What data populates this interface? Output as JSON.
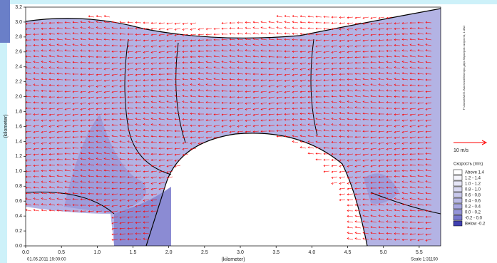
{
  "chart_data": {
    "type": "vector_map",
    "x_label": "(kilometer)",
    "y_label": "(kilometer)",
    "xlim": [
      0,
      5.8
    ],
    "ylim": [
      0,
      3.2
    ],
    "xticks": [
      {
        "value": 0,
        "label": "0.0"
      },
      0.5,
      {
        "value": 1,
        "label": "1.0"
      },
      1.5,
      {
        "value": 2,
        "label": "2.0"
      },
      2.5,
      {
        "value": 3,
        "label": "3.0"
      },
      3.5,
      {
        "value": 4,
        "label": "4.0"
      },
      4.5,
      {
        "value": 5,
        "label": "5.0"
      },
      5.5
    ],
    "yticks": [
      {
        "value": 0,
        "label": "0.0"
      },
      0.2,
      0.4,
      0.6,
      0.8,
      {
        "value": 1,
        "label": "1.0"
      },
      1.2,
      1.4,
      1.6,
      1.8,
      {
        "value": 2,
        "label": "2.0"
      },
      2.2,
      2.4,
      2.6,
      2.8,
      {
        "value": 3,
        "label": "3.0"
      },
      3.2
    ],
    "vector_color": "#ff0000",
    "vector_scale_label": "10 m/s",
    "legend_title": "Скорость (m/s)",
    "legend": [
      {
        "label": "Above  1.4",
        "color": "#ffffff"
      },
      {
        "label": "1.2 - 1.4",
        "color": "#f4f4fb"
      },
      {
        "label": "1.0 - 1.2",
        "color": "#e6e6f6"
      },
      {
        "label": "0.8 - 1.0",
        "color": "#d8d8f1"
      },
      {
        "label": "0.6 - 0.8",
        "color": "#c9c9ec"
      },
      {
        "label": "0.4 - 0.6",
        "color": "#b9b9e6"
      },
      {
        "label": "0.2 - 0.4",
        "color": "#a7a7e0"
      },
      {
        "label": "0.0 - 0.2",
        "color": "#9494d8"
      },
      {
        "label": "-0.2 - 0.0",
        "color": "#7777cc"
      },
      {
        "label": "Below -0.2",
        "color": "#4040b0"
      }
    ],
    "file_path": "F:\\Залив\\МИ2.0\\Анализ\\Вектора двух барьеров скорости, 1.dfs2",
    "timestamp": "01.05.2011 19:00:00",
    "scale_text": "Scale 1:31190"
  }
}
